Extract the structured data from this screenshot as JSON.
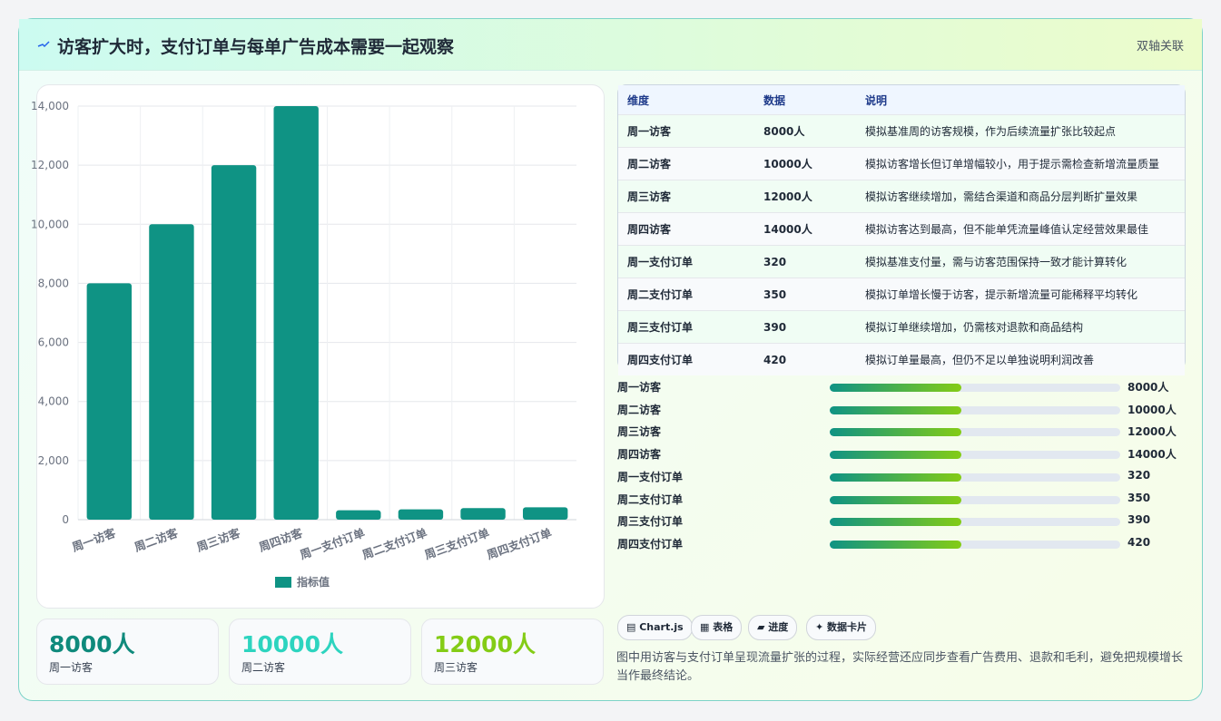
{
  "header": {
    "title": "访客扩大时，支付订单与每单广告成本需要一起观察",
    "badge": "双轴关联"
  },
  "chart_data": {
    "type": "bar",
    "categories": [
      "周一访客",
      "周二访客",
      "周三访客",
      "周四访客",
      "周一支付订单",
      "周二支付订单",
      "周三支付订单",
      "周四支付订单"
    ],
    "series": [
      {
        "name": "指标值",
        "color": "#0f9384",
        "values": [
          8000,
          10000,
          12000,
          14000,
          320,
          350,
          390,
          420
        ]
      }
    ],
    "ylim": [
      0,
      14000
    ],
    "yticks": [
      0,
      {
        "value": 2000,
        "label": "2,000"
      },
      {
        "value": 4000,
        "label": "4,000"
      },
      {
        "value": 6000,
        "label": "6,000"
      },
      {
        "value": 8000,
        "label": "8,000"
      },
      {
        "value": 10000,
        "label": "10,000"
      },
      {
        "value": 12000,
        "label": "12,000"
      },
      {
        "value": 14000,
        "label": "14,000"
      }
    ],
    "grid": true,
    "legend": "bottom"
  },
  "table": {
    "columns": [
      "维度",
      "数据",
      "说明"
    ],
    "rows": [
      [
        "周一访客",
        "8000人",
        "模拟基准周的访客规模，作为后续流量扩张比较起点"
      ],
      [
        "周二访客",
        "10000人",
        "模拟访客增长但订单增幅较小，用于提示需检查新增流量质量"
      ],
      [
        "周三访客",
        "12000人",
        "模拟访客继续增加，需结合渠道和商品分层判断扩量效果"
      ],
      [
        "周四访客",
        "14000人",
        "模拟访客达到最高，但不能单凭流量峰值认定经营效果最佳"
      ],
      [
        "周一支付订单",
        "320",
        "模拟基准支付量，需与访客范围保持一致才能计算转化"
      ],
      [
        "周二支付订单",
        "350",
        "模拟订单增长慢于访客，提示新增流量可能稀释平均转化"
      ],
      [
        "周三支付订单",
        "390",
        "模拟订单继续增加，仍需核对退款和商品结构"
      ],
      [
        "周四支付订单",
        "420",
        "模拟订单量最高，但仍不足以单独说明利润改善"
      ]
    ]
  },
  "progress": [
    [
      "周一访客",
      "8000人"
    ],
    [
      "周二访客",
      "10000人"
    ],
    [
      "周三访客",
      "12000人"
    ],
    [
      "周四访客",
      "14000人"
    ],
    [
      "周一支付订单",
      "320"
    ],
    [
      "周二支付订单",
      "350"
    ],
    [
      "周三支付订单",
      "390"
    ],
    [
      "周四支付订单",
      "420"
    ]
  ],
  "cards": [
    {
      "value": "8000人",
      "label": "周一访客"
    },
    {
      "value": "10000人",
      "label": "周二访客"
    },
    {
      "value": "12000人",
      "label": "周三访客"
    }
  ],
  "tags": [
    "▤ Chart.js",
    "▦ 表格",
    "▰ 进度",
    "✦ 数据卡片"
  ],
  "note": "图中用访客与支付订单呈现流量扩张的过程，实际经营还应同步查看广告费用、退款和毛利，避免把规模增长当作最终结论。"
}
